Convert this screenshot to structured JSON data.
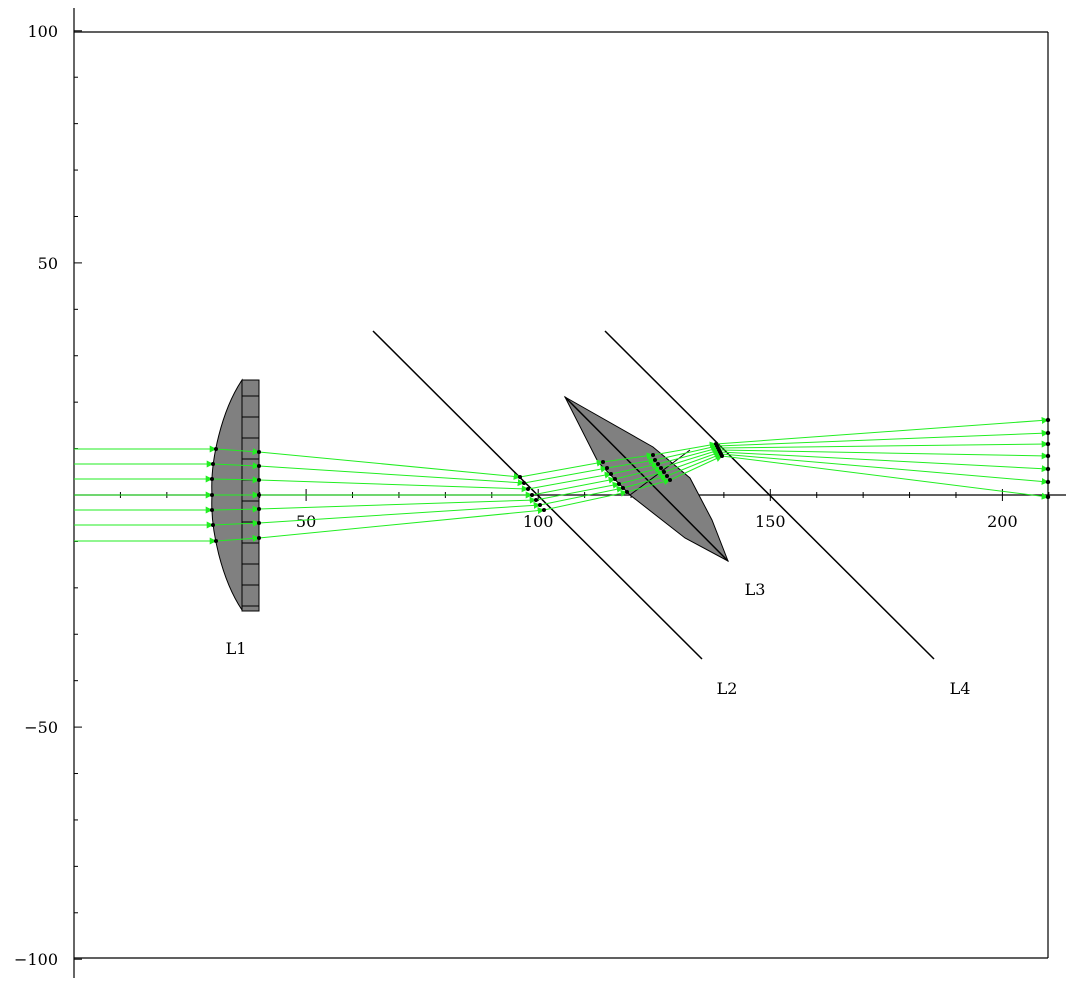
{
  "chart_data": {
    "type": "diagram",
    "title": "",
    "x_ticks": [
      "50",
      "100",
      "150",
      "200"
    ],
    "y_ticks": [
      "100",
      "50",
      "−50",
      "−100"
    ],
    "xlim": [
      -1,
      210
    ],
    "ylim": [
      -103,
      104
    ],
    "colors": {
      "ray": "#22ee22",
      "lens_fill": "#808080",
      "line": "#000000"
    },
    "elements": [
      {
        "label": "L1",
        "kind": "plano-convex lens"
      },
      {
        "label": "L2",
        "kind": "tilted plane surface"
      },
      {
        "label": "L3",
        "kind": "tilted biconvex lens"
      },
      {
        "label": "L4",
        "kind": "tilted plane surface"
      }
    ],
    "ray_count": 7
  }
}
